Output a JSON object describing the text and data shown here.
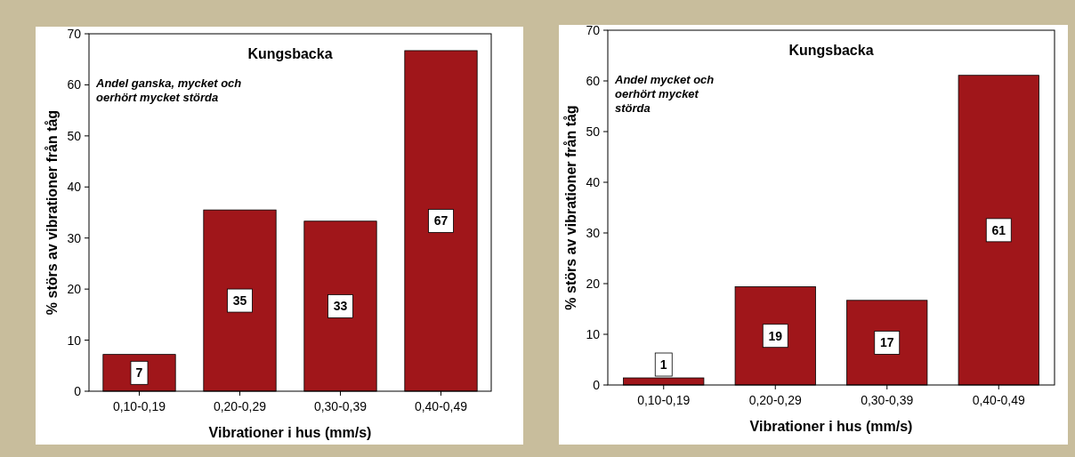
{
  "chart_data": [
    {
      "type": "bar",
      "title": "Kungsbacka",
      "annotations": [
        "Andel ganska, mycket och oerhört mycket störda"
      ],
      "xlabel": "Vibrationer i hus (mm/s)",
      "ylabel": "% störs av vibrationer från tåg",
      "categories": [
        "0,10-0,19",
        "0,20-0,29",
        "0,30-0,39",
        "0,40-0,49"
      ],
      "values": [
        7.2,
        35.5,
        33.3,
        66.7
      ],
      "value_labels": [
        "7",
        "35",
        "33",
        "67"
      ],
      "color": "#a0161a",
      "ylim": [
        0,
        70
      ],
      "yticks": [
        0,
        10,
        20,
        30,
        40,
        50,
        60,
        70
      ],
      "grid": false
    },
    {
      "type": "bar",
      "title": "Kungsbacka",
      "annotations": [
        "Andel mycket och oerhört mycket störda"
      ],
      "xlabel": "Vibrationer i hus (mm/s)",
      "ylabel": "% störs av vibrationer från tåg",
      "categories": [
        "0,10-0,19",
        "0,20-0,29",
        "0,30-0,39",
        "0,40-0,49"
      ],
      "values": [
        1.4,
        19.4,
        16.7,
        61.1
      ],
      "value_labels": [
        "1",
        "19",
        "17",
        "61"
      ],
      "color": "#a0161a",
      "ylim": [
        0,
        70
      ],
      "yticks": [
        0,
        10,
        20,
        30,
        40,
        50,
        60,
        70
      ],
      "grid": false
    }
  ]
}
